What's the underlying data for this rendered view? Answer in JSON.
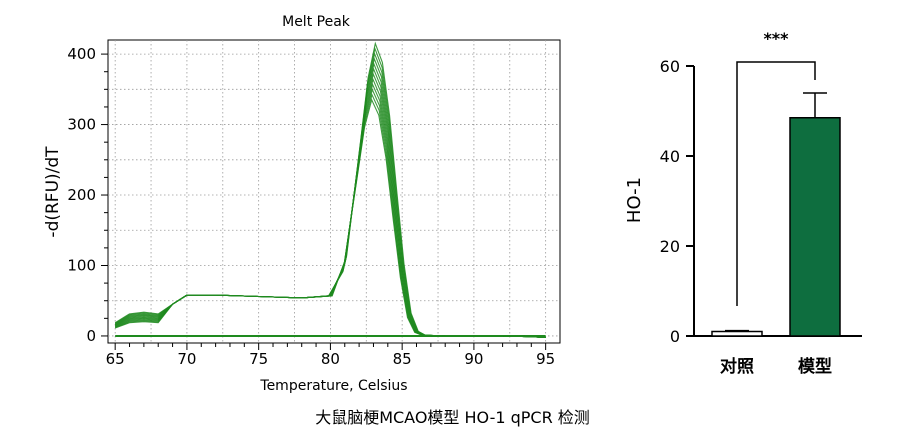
{
  "caption": "大鼠脑梗MCAO模型 HO-1 qPCR 检测",
  "colors": {
    "melt_line": "#1e8a1e",
    "bar_fill": "#0e6e3f",
    "axis": "#000000",
    "grid": "#9a9a9a"
  },
  "chart_data": [
    {
      "type": "line",
      "title": "Melt Peak",
      "xlabel": "Temperature, Celsius",
      "ylabel": "-d(RFU)/dT",
      "xlim": [
        64.5,
        96
      ],
      "ylim": [
        -10,
        420
      ],
      "xticks": [
        "65",
        "70",
        "75",
        "80",
        "85",
        "90",
        "95"
      ],
      "yticks": [
        "0",
        "100",
        "200",
        "300",
        "400"
      ],
      "grid": true,
      "legend": "none",
      "series_count": 12,
      "base_curve": {
        "x": [
          65,
          66,
          67,
          68,
          69,
          70,
          72,
          75,
          78,
          80,
          81,
          82,
          82.5,
          83,
          83.5,
          84,
          84.5,
          85,
          85.5,
          86,
          86.5,
          88,
          90,
          92,
          94,
          95
        ],
        "y": [
          15,
          25,
          27,
          25,
          45,
          58,
          58,
          56,
          54,
          57,
          105,
          260,
          340,
          385,
          360,
          290,
          190,
          95,
          30,
          6,
          1,
          0,
          0,
          0,
          -1,
          -2
        ]
      },
      "peak_range": [
        335,
        415
      ]
    },
    {
      "type": "bar",
      "categories": [
        "对照",
        "模型"
      ],
      "values": [
        1,
        48.5
      ],
      "errors": [
        0.2,
        5.5
      ],
      "ylabel": "HO-1",
      "ylim": [
        0,
        60
      ],
      "yticks": [
        "0",
        "20",
        "40",
        "60"
      ],
      "significance": "***"
    }
  ]
}
